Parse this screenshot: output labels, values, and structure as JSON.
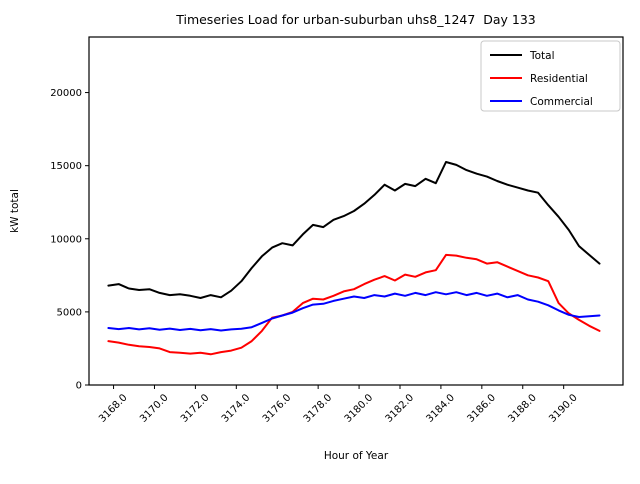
{
  "chart_data": {
    "type": "line",
    "title": "Timeseries Load for urban-suburban uhs8_1247  Day 133",
    "xlabel": "Hour of Year",
    "ylabel": "kW total",
    "xlim": [
      3166.8,
      3192.9
    ],
    "ylim": [
      0,
      23800
    ],
    "yticks": [
      0,
      5000,
      10000,
      15000,
      20000
    ],
    "ytick_labels": [
      "0",
      "5000",
      "10000",
      "15000",
      "20000"
    ],
    "xticks": [
      3168,
      3170,
      3172,
      3174,
      3176,
      3178,
      3180,
      3182,
      3184,
      3186,
      3188,
      3190
    ],
    "xtick_labels": [
      "3168.0",
      "3170.0",
      "3172.0",
      "3174.0",
      "3176.0",
      "3178.0",
      "3180.0",
      "3182.0",
      "3184.0",
      "3186.0",
      "3188.0",
      "3190.0"
    ],
    "grid": false,
    "legend_position": "upper right",
    "x": [
      3167.75,
      3168.25,
      3168.75,
      3169.25,
      3169.75,
      3170.25,
      3170.75,
      3171.25,
      3171.75,
      3172.25,
      3172.75,
      3173.25,
      3173.75,
      3174.25,
      3174.75,
      3175.25,
      3175.75,
      3176.25,
      3176.75,
      3177.25,
      3177.75,
      3178.25,
      3178.75,
      3179.25,
      3179.75,
      3180.25,
      3180.75,
      3181.25,
      3181.75,
      3182.25,
      3182.75,
      3183.25,
      3183.75,
      3184.25,
      3184.75,
      3185.25,
      3185.75,
      3186.25,
      3186.75,
      3187.25,
      3187.75,
      3188.25,
      3188.75,
      3189.25,
      3189.75,
      3190.25,
      3190.75,
      3191.25,
      3191.75
    ],
    "series": [
      {
        "name": "Total",
        "color": "#000000",
        "values": [
          6800,
          6900,
          6600,
          6500,
          6550,
          6300,
          6150,
          6200,
          6100,
          5950,
          6150,
          6000,
          6450,
          7100,
          8000,
          8800,
          9400,
          9700,
          9550,
          10300,
          10950,
          10800,
          11300,
          11550,
          11900,
          12400,
          13000,
          13700,
          13300,
          13750,
          13600,
          14100,
          13800,
          15250,
          15050,
          14700,
          14450,
          14250,
          13950,
          13700,
          13500,
          13300,
          13150,
          12300,
          11500,
          10600,
          9500,
          8900,
          8300
        ]
      },
      {
        "name": "Residential",
        "color": "#ff0000",
        "values": [
          3000,
          2900,
          2750,
          2650,
          2600,
          2500,
          2250,
          2200,
          2150,
          2200,
          2100,
          2250,
          2350,
          2550,
          3000,
          3700,
          4600,
          4750,
          5000,
          5600,
          5900,
          5850,
          6100,
          6400,
          6550,
          6900,
          7200,
          7450,
          7150,
          7550,
          7400,
          7700,
          7850,
          8900,
          8850,
          8700,
          8600,
          8300,
          8400,
          8100,
          7800,
          7500,
          7350,
          7100,
          5600,
          4900,
          4450,
          4050,
          3700
        ]
      },
      {
        "name": "Commercial",
        "color": "#0000ff",
        "values": [
          3900,
          3820,
          3900,
          3800,
          3880,
          3780,
          3860,
          3760,
          3840,
          3740,
          3820,
          3730,
          3800,
          3850,
          3950,
          4250,
          4550,
          4750,
          4950,
          5250,
          5500,
          5550,
          5750,
          5900,
          6050,
          5950,
          6150,
          6050,
          6250,
          6100,
          6300,
          6150,
          6350,
          6200,
          6350,
          6150,
          6300,
          6100,
          6250,
          6000,
          6150,
          5850,
          5700,
          5450,
          5100,
          4800,
          4650,
          4700,
          4750
        ]
      }
    ]
  }
}
